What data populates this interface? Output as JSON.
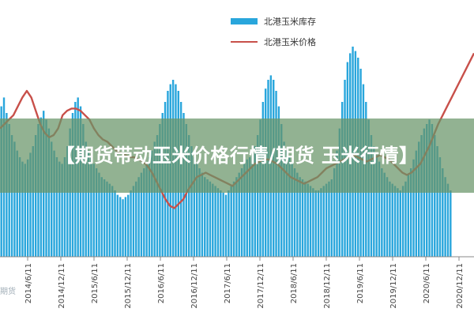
{
  "overlay": {
    "title": "【期货带动玉米价格行情/期货 玉米行情】"
  },
  "watermark": {
    "text": "期货"
  },
  "colors": {
    "inventory_bar": "#29a6dc",
    "price_line": "#c8504a",
    "overlay_band": "#6a946a",
    "axis": "#888888"
  },
  "chart_data": {
    "type": "bar+line",
    "title": "",
    "xlabel": "",
    "ylabel": "",
    "grid": false,
    "legend": "top-center",
    "x_tick_labels": [
      "2014/6/11",
      "2014/12/11",
      "2015/6/11",
      "2015/12/11",
      "2016/6/11",
      "2016/12/11",
      "2017/6/11",
      "2017/12/11",
      "2018/6/11",
      "2018/12/11",
      "2019/6/11",
      "2019/12/11",
      "2020/6/11",
      "2020/12/11"
    ],
    "ylim": [
      0,
      100
    ],
    "series": [
      {
        "name": "北港玉米库存",
        "type": "bar",
        "values": [
          68,
          72,
          65,
          60,
          55,
          52,
          48,
          45,
          43,
          42,
          44,
          47,
          50,
          55,
          60,
          63,
          66,
          62,
          58,
          52,
          48,
          45,
          43,
          42,
          45,
          50,
          58,
          65,
          70,
          72,
          68,
          60,
          52,
          48,
          45,
          42,
          40,
          38,
          36,
          35,
          34,
          33,
          32,
          30,
          28,
          27,
          26,
          27,
          28,
          30,
          32,
          34,
          36,
          38,
          40,
          42,
          45,
          48,
          52,
          55,
          60,
          65,
          70,
          75,
          78,
          80,
          78,
          75,
          70,
          65,
          60,
          55,
          50,
          45,
          42,
          40,
          38,
          36,
          35,
          34,
          33,
          32,
          31,
          30,
          29,
          28,
          30,
          32,
          34,
          36,
          38,
          40,
          42,
          44,
          45,
          46,
          50,
          55,
          62,
          70,
          76,
          80,
          82,
          80,
          75,
          68,
          60,
          52,
          48,
          45,
          42,
          40,
          38,
          36,
          35,
          34,
          33,
          32,
          31,
          30,
          30,
          31,
          32,
          33,
          34,
          35,
          40,
          48,
          58,
          70,
          80,
          88,
          92,
          95,
          93,
          90,
          85,
          78,
          70,
          62,
          55,
          50,
          46,
          43,
          40,
          38,
          36,
          34,
          33,
          32,
          31,
          30,
          32,
          34,
          37,
          40,
          44,
          48,
          52,
          55,
          58,
          60,
          62,
          60,
          55,
          50,
          45,
          40,
          36,
          33,
          30
        ]
      },
      {
        "name": "北港玉米价格",
        "type": "line",
        "values": [
          58,
          60,
          62,
          64,
          68,
          72,
          75,
          72,
          66,
          60,
          56,
          54,
          55,
          58,
          64,
          66,
          67,
          67,
          66,
          64,
          62,
          58,
          55,
          53,
          52,
          50,
          48,
          47,
          46,
          45,
          45,
          44,
          43,
          41,
          38,
          34,
          30,
          26,
          23,
          22,
          24,
          26,
          30,
          33,
          36,
          37,
          38,
          37,
          36,
          35,
          34,
          33,
          32,
          34,
          36,
          38,
          40,
          42,
          43,
          44,
          44,
          43,
          42,
          40,
          38,
          36,
          35,
          34,
          33,
          34,
          35,
          36,
          38,
          40,
          41,
          42,
          43,
          44,
          45,
          46,
          45,
          44,
          43,
          44,
          45,
          46,
          45,
          44,
          42,
          40,
          38,
          37,
          38,
          40,
          42,
          46,
          50,
          55,
          60,
          64,
          68,
          72,
          76,
          80,
          84,
          88,
          92
        ]
      }
    ]
  }
}
